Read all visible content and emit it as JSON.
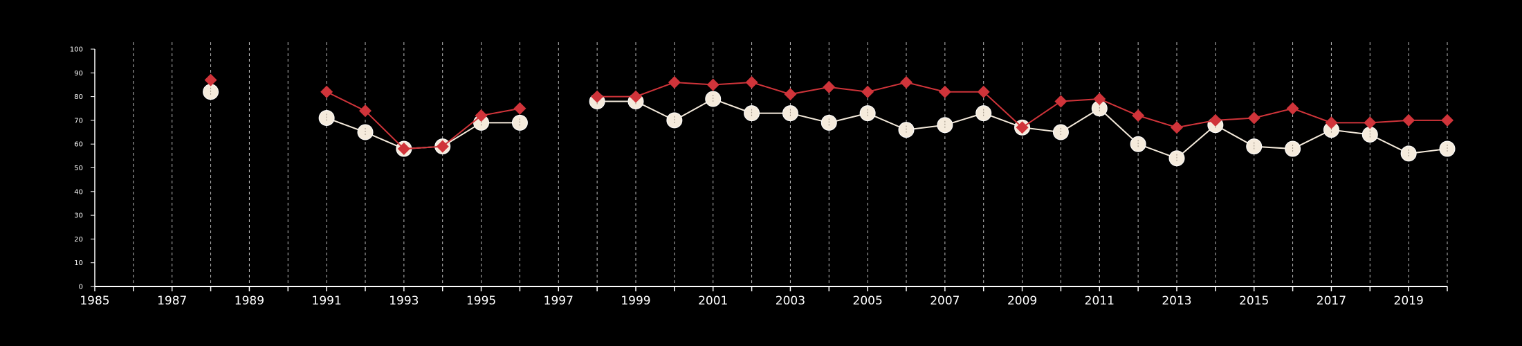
{
  "chart_data": {
    "type": "line",
    "title": "",
    "xlabel": "",
    "ylabel": "",
    "xlim": [
      1985,
      2020
    ],
    "ylim": [
      0,
      100
    ],
    "yticks": [
      0,
      10,
      20,
      30,
      40,
      50,
      60,
      70,
      80,
      90,
      100
    ],
    "xticks": [
      1985,
      1987,
      1989,
      1991,
      1993,
      1995,
      1997,
      1999,
      2001,
      2003,
      2005,
      2007,
      2009,
      2011,
      2013,
      2015,
      2017,
      2019
    ],
    "vertical_dashed_gridlines": true,
    "x": [
      1985,
      1986,
      1987,
      1988,
      1989,
      1990,
      1991,
      1992,
      1993,
      1994,
      1995,
      1996,
      1997,
      1998,
      1999,
      2000,
      2001,
      2002,
      2003,
      2004,
      2005,
      2006,
      2007,
      2008,
      2009,
      2010,
      2011,
      2012,
      2013,
      2014,
      2015,
      2016,
      2017,
      2018,
      2019,
      2020
    ],
    "series": [
      {
        "color": "#d0343a",
        "marker": "diamond",
        "values": [
          null,
          null,
          null,
          87,
          null,
          null,
          82,
          74,
          58,
          59,
          72,
          75,
          null,
          80,
          80,
          86,
          85,
          86,
          81,
          84,
          82,
          86,
          82,
          82,
          67,
          78,
          79,
          72,
          67,
          70,
          71,
          75,
          69,
          69,
          70,
          70
        ]
      },
      {
        "color": "#f5ebdc",
        "marker": "circle",
        "values": [
          null,
          null,
          null,
          82,
          null,
          null,
          71,
          65,
          58,
          59,
          69,
          69,
          null,
          78,
          78,
          70,
          79,
          73,
          73,
          69,
          73,
          66,
          68,
          73,
          67,
          65,
          75,
          60,
          54,
          68,
          59,
          58,
          66,
          64,
          56,
          58
        ]
      }
    ]
  }
}
